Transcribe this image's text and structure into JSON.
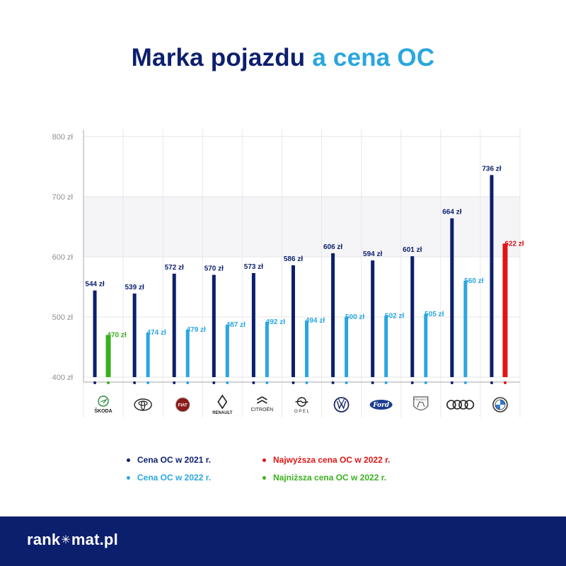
{
  "title": {
    "part1": "Marka pojazdu",
    "part2": "a cena OC"
  },
  "colors": {
    "c2021": "#0c1f6d",
    "c2022": "#2aa6df",
    "highest": "#e11414",
    "lowest": "#3ab01e"
  },
  "chart_data": {
    "type": "bar",
    "unit": "zł",
    "ylim": [
      400,
      800
    ],
    "yticks": [
      "800 zł",
      "700 zł",
      "600 zł",
      "500 zł",
      "400 zł"
    ],
    "ytick_values": [
      800,
      700,
      600,
      500,
      400
    ],
    "grid": true,
    "categories": [
      "ŠKODA",
      "TOYOTA",
      "FIAT",
      "RENAULT",
      "CITROËN",
      "OPEL",
      "VW",
      "FORD",
      "PEUGEOT",
      "AUDI",
      "BMW"
    ],
    "series": [
      {
        "name": "Cena OC w 2021 r.",
        "values": [
          544,
          539,
          572,
          570,
          573,
          586,
          606,
          594,
          601,
          664,
          736
        ],
        "labels": [
          "544 zł",
          "539 zł",
          "572 zł",
          "570 zł",
          "573 zł",
          "586 zł",
          "606 zł",
          "594 zł",
          "601 zł",
          "664 zł",
          "736 zł"
        ]
      },
      {
        "name": "Cena OC w 2022 r.",
        "values": [
          470,
          474,
          479,
          487,
          492,
          494,
          500,
          502,
          505,
          560,
          622
        ],
        "labels": [
          "470 zł",
          "474 zł",
          "479 zł",
          "487 zł",
          "492 zł",
          "494 zł",
          "500 zł",
          "502 zł",
          "505 zł",
          "560 zł",
          "622 zł"
        ]
      }
    ],
    "highlights": {
      "lowest_2022_index": 0,
      "highest_2022_index": 10
    }
  },
  "brand_logos": [
    {
      "name": "skoda",
      "text": "ŠKODA"
    },
    {
      "name": "toyota",
      "text": ""
    },
    {
      "name": "fiat",
      "text": "FIAT"
    },
    {
      "name": "renault",
      "text": "RENAULT"
    },
    {
      "name": "citroen",
      "text": "CITROËN"
    },
    {
      "name": "opel",
      "text": "O P E L"
    },
    {
      "name": "volkswagen",
      "text": ""
    },
    {
      "name": "ford",
      "text": "Ford"
    },
    {
      "name": "peugeot",
      "text": "PEUGEOT"
    },
    {
      "name": "audi",
      "text": ""
    },
    {
      "name": "bmw",
      "text": "BMW"
    }
  ],
  "legend": {
    "c2021": "Cena OC w 2021 r.",
    "c2022": "Cena OC w 2022 r.",
    "highest": "Najwyższa cena OC w 2022 r.",
    "lowest": "Najniższa cena OC w 2022 r."
  },
  "footer": {
    "brand_left": "rank",
    "brand_right": "mat.pl"
  }
}
